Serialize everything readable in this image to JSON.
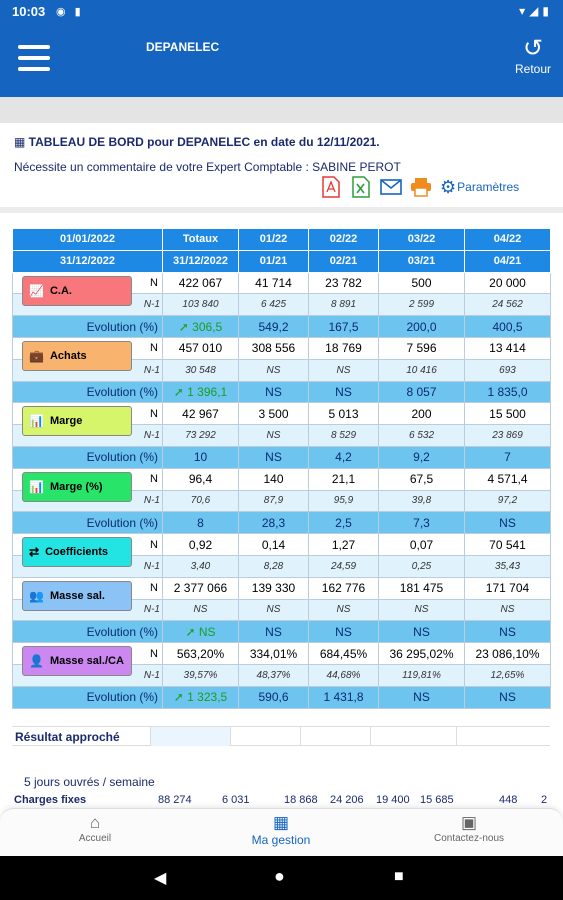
{
  "status": {
    "time": "10:03"
  },
  "appbar": {
    "title": "DEPANELEC",
    "back_label": "Retour"
  },
  "header": {
    "title": "TABLEAU DE BORD pour DEPANELEC en date du 12/11/2021.",
    "comment": "Nécessite un commentaire de votre Expert Comptable : SABINE PEROT",
    "params_label": "Paramètres"
  },
  "table": {
    "head1": [
      "01/01/2022",
      "Totaux",
      "01/22",
      "02/22",
      "03/22",
      "04/22"
    ],
    "head2": [
      "31/12/2022",
      "31/12/2022",
      "01/21",
      "02/21",
      "03/21",
      "04/21"
    ],
    "sections": [
      {
        "label": "C.A.",
        "color": "#f8777b",
        "icon": "chart-line-icon",
        "n": [
          "422 067",
          "41 714",
          "23 782",
          "500",
          "20 000"
        ],
        "n1": [
          "103 840",
          "6 425",
          "8 891",
          "2 599",
          "24 562"
        ],
        "evo": [
          "306,5",
          "549,2",
          "167,5",
          "200,0",
          "400,5"
        ],
        "evo_up": true
      },
      {
        "label": "Achats",
        "color": "#f8b36e",
        "icon": "briefcase-icon",
        "n": [
          "457 010",
          "308 556",
          "18 769",
          "7 596",
          "13 414"
        ],
        "n1": [
          "30 548",
          "NS",
          "NS",
          "10 416",
          "693"
        ],
        "evo": [
          "1 396,1",
          "NS",
          "NS",
          "8 057",
          "1 835,0"
        ],
        "evo_up": true
      },
      {
        "label": "Marge",
        "color": "#d6f56a",
        "icon": "area-chart-icon",
        "n": [
          "42 967",
          "3 500",
          "5 013",
          "200",
          "15 500"
        ],
        "n1": [
          "73 292",
          "NS",
          "8 529",
          "6 532",
          "23 869"
        ],
        "evo": [
          "10",
          "NS",
          "4,2",
          "9,2",
          "7"
        ],
        "evo_up": false
      },
      {
        "label": "Marge (%)",
        "color": "#28e56a",
        "icon": "area-chart-icon",
        "n": [
          "96,4",
          "140",
          "21,1",
          "67,5",
          "4 571,4"
        ],
        "n1": [
          "70,6",
          "87,9",
          "95,9",
          "39,8",
          "97,2"
        ],
        "evo": [
          "8",
          "28,3",
          "2,5",
          "7,3",
          "NS"
        ],
        "evo_up": false
      },
      {
        "label": "Coefficients",
        "color": "#23e3e3",
        "icon": "exchange-icon",
        "n": [
          "0,92",
          "0,14",
          "1,27",
          "0,07",
          "70 541"
        ],
        "n1": [
          "3,40",
          "8,28",
          "24,59",
          "0,25",
          "35,43"
        ],
        "evo": null,
        "evo_up": false
      },
      {
        "label": "Masse sal.",
        "color": "#8bc3f7",
        "icon": "users-icon",
        "n": [
          "2 377 066",
          "139 330",
          "162 776",
          "181 475",
          "171 704"
        ],
        "n1": [
          "NS",
          "NS",
          "NS",
          "NS",
          "NS"
        ],
        "evo": [
          "NS",
          "NS",
          "NS",
          "NS",
          "NS"
        ],
        "evo_up": true
      },
      {
        "label": "Masse sal./CA",
        "color": "#cc88f0",
        "icon": "user-icon",
        "n": [
          "563,20%",
          "334,01%",
          "684,45%",
          "36 295,02%",
          "23 086,10%"
        ],
        "n1": [
          "39,57%",
          "48,37%",
          "44,68%",
          "119,81%",
          "12,65%"
        ],
        "evo": [
          "1 323,5",
          "590,6",
          "1 431,8",
          "NS",
          "NS"
        ],
        "evo_up": true
      }
    ],
    "n_label": "N",
    "n1_label": "N-1",
    "evo_label": "Evolution (%)"
  },
  "resultat_label": "Résultat approché",
  "jours_label": "5 jours ouvrés / semaine",
  "charges": {
    "label": "Charges fixes",
    "values": [
      "88 274",
      "6 031",
      "18 868",
      "24 206",
      "19 400",
      "15 685",
      "448",
      "2"
    ]
  },
  "nav": {
    "home": "Accueil",
    "gestion": "Ma gestion",
    "contact": "Contactez-nous"
  },
  "colors": {
    "primary": "#1565c0",
    "header_cell": "#1e88e5",
    "evolution_row": "#6cc4ef",
    "n1_row": "#e0f2fc"
  }
}
